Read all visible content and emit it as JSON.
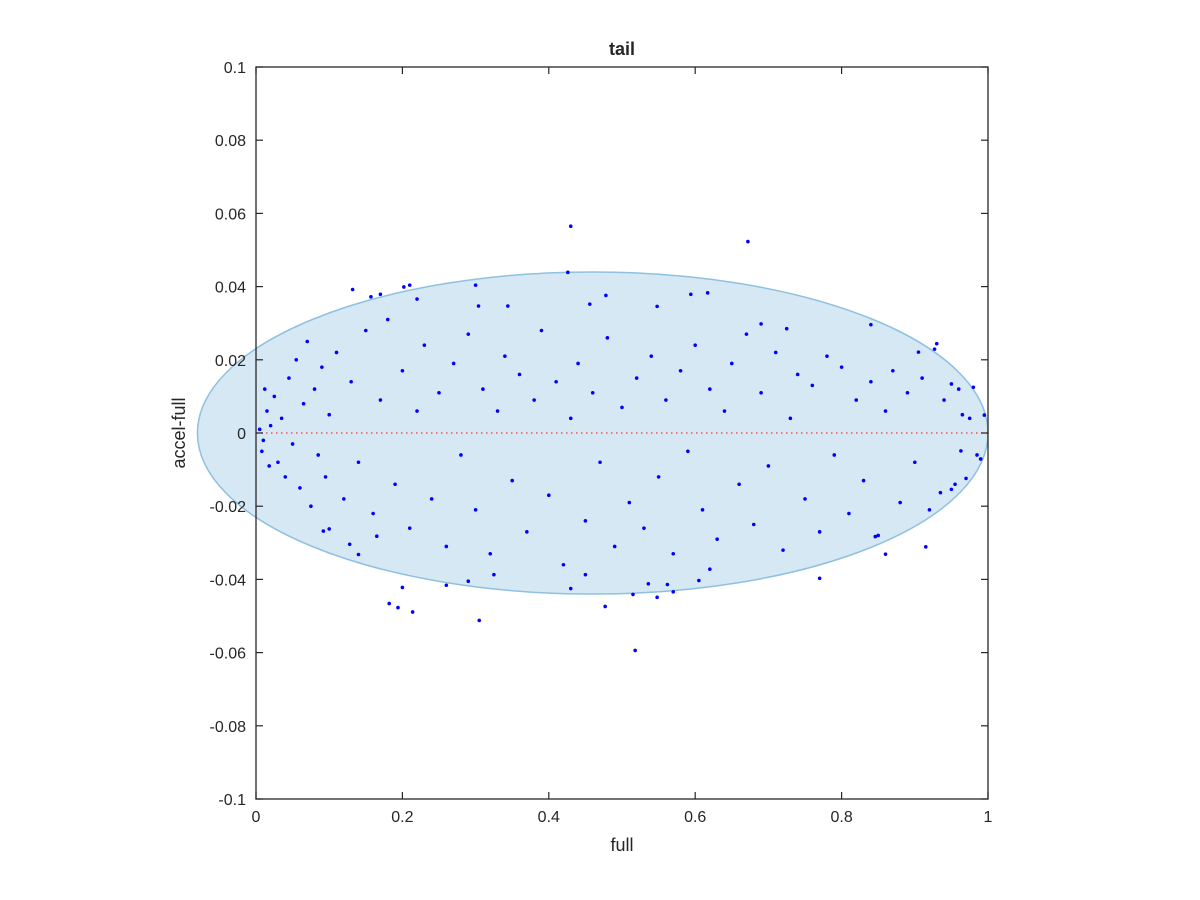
{
  "chart_data": {
    "type": "scatter",
    "title": "tail",
    "xlabel": "full",
    "ylabel": "accel-full",
    "xlim": [
      0,
      1
    ],
    "ylim": [
      -0.1,
      0.1
    ],
    "xticks": [
      0,
      0.2,
      0.4,
      0.6,
      0.8,
      1
    ],
    "xtick_labels": [
      "0",
      "0.2",
      "0.4",
      "0.6",
      "0.8",
      "1"
    ],
    "yticks": [
      -0.1,
      -0.08,
      -0.06,
      -0.04,
      -0.02,
      0,
      0.02,
      0.04,
      0.06,
      0.08,
      0.1
    ],
    "ytick_labels": [
      "-0.1",
      "-0.08",
      "-0.06",
      "-0.04",
      "-0.02",
      "0",
      "0.02",
      "0.04",
      "0.06",
      "0.08",
      "0.1"
    ],
    "grid": false,
    "reference_line": {
      "y": 0,
      "style": "dotted",
      "color": "#ff4d4d"
    },
    "ellipse": {
      "center_x": 0.46,
      "center_y": 0,
      "semi_axis_x": 0.54,
      "semi_axis_y": 0.044,
      "fill_color": "#d6e8f4",
      "stroke_color": "#8fc1de"
    },
    "point_color": "#0000ff",
    "series": [
      {
        "values": [
          [
            0.43,
            0.0565
          ],
          [
            0.672,
            0.0523
          ],
          [
            0.426,
            0.0439
          ],
          [
            0.3,
            0.0404
          ],
          [
            0.21,
            0.0404
          ],
          [
            0.202,
            0.0399
          ],
          [
            0.132,
            0.0392
          ],
          [
            0.22,
            0.0366
          ],
          [
            0.17,
            0.0379
          ],
          [
            0.157,
            0.0372
          ],
          [
            0.478,
            0.0376
          ],
          [
            0.456,
            0.0352
          ],
          [
            0.548,
            0.0346
          ],
          [
            0.617,
            0.0383
          ],
          [
            0.594,
            0.0379
          ],
          [
            0.304,
            0.0347
          ],
          [
            0.344,
            0.0347
          ],
          [
            0.84,
            0.0296
          ],
          [
            0.69,
            0.0298
          ],
          [
            0.725,
            0.0285
          ],
          [
            0.93,
            0.0244
          ],
          [
            0.927,
            0.0229
          ],
          [
            0.905,
            0.0221
          ],
          [
            0.98,
            0.0125
          ],
          [
            0.95,
            0.0134
          ],
          [
            0.965,
            0.005
          ],
          [
            0.995,
            0.0049
          ],
          [
            0.99,
            -0.0071
          ],
          [
            0.97,
            -0.0124
          ],
          [
            0.963,
            -0.0049
          ],
          [
            0.95,
            -0.0154
          ],
          [
            0.935,
            -0.0163
          ],
          [
            0.915,
            -0.0311
          ],
          [
            0.86,
            -0.0331
          ],
          [
            0.846,
            -0.0283
          ],
          [
            0.77,
            -0.0397
          ],
          [
            0.62,
            -0.0372
          ],
          [
            0.57,
            -0.0434
          ],
          [
            0.562,
            -0.0414
          ],
          [
            0.548,
            -0.0449
          ],
          [
            0.536,
            -0.0412
          ],
          [
            0.515,
            -0.0441
          ],
          [
            0.477,
            -0.0474
          ],
          [
            0.518,
            -0.0594
          ],
          [
            0.305,
            -0.0512
          ],
          [
            0.214,
            -0.0489
          ],
          [
            0.2,
            -0.0422
          ],
          [
            0.194,
            -0.0477
          ],
          [
            0.182,
            -0.0466
          ],
          [
            0.165,
            -0.0282
          ],
          [
            0.14,
            -0.0332
          ],
          [
            0.128,
            -0.0304
          ],
          [
            0.1,
            -0.0262
          ],
          [
            0.092,
            -0.0268
          ],
          [
            0.26,
            -0.0416
          ],
          [
            0.29,
            -0.0405
          ],
          [
            0.325,
            -0.0387
          ],
          [
            0.43,
            -0.0425
          ],
          [
            0.45,
            -0.0387
          ],
          [
            0.605,
            -0.0403
          ],
          [
            0.02,
            0.002
          ],
          [
            0.01,
            -0.002
          ],
          [
            0.015,
            0.006
          ],
          [
            0.005,
            0.001
          ],
          [
            0.008,
            -0.005
          ],
          [
            0.025,
            0.01
          ],
          [
            0.03,
            -0.008
          ],
          [
            0.012,
            0.012
          ],
          [
            0.035,
            0.004
          ],
          [
            0.04,
            -0.012
          ],
          [
            0.018,
            -0.009
          ],
          [
            0.045,
            0.015
          ],
          [
            0.05,
            -0.003
          ],
          [
            0.055,
            0.02
          ],
          [
            0.06,
            -0.015
          ],
          [
            0.065,
            0.008
          ],
          [
            0.07,
            0.025
          ],
          [
            0.075,
            -0.02
          ],
          [
            0.08,
            0.012
          ],
          [
            0.085,
            -0.006
          ],
          [
            0.09,
            0.018
          ],
          [
            0.095,
            -0.012
          ],
          [
            0.1,
            0.005
          ],
          [
            0.11,
            0.022
          ],
          [
            0.12,
            -0.018
          ],
          [
            0.13,
            0.014
          ],
          [
            0.14,
            -0.008
          ],
          [
            0.15,
            0.028
          ],
          [
            0.16,
            -0.022
          ],
          [
            0.17,
            0.009
          ],
          [
            0.18,
            0.031
          ],
          [
            0.19,
            -0.014
          ],
          [
            0.2,
            0.017
          ],
          [
            0.21,
            -0.026
          ],
          [
            0.22,
            0.006
          ],
          [
            0.23,
            0.024
          ],
          [
            0.24,
            -0.018
          ],
          [
            0.25,
            0.011
          ],
          [
            0.26,
            -0.031
          ],
          [
            0.27,
            0.019
          ],
          [
            0.28,
            -0.006
          ],
          [
            0.29,
            0.027
          ],
          [
            0.3,
            -0.021
          ],
          [
            0.31,
            0.012
          ],
          [
            0.32,
            -0.033
          ],
          [
            0.33,
            0.006
          ],
          [
            0.34,
            0.021
          ],
          [
            0.35,
            -0.013
          ],
          [
            0.36,
            0.016
          ],
          [
            0.37,
            -0.027
          ],
          [
            0.38,
            0.009
          ],
          [
            0.39,
            0.028
          ],
          [
            0.4,
            -0.017
          ],
          [
            0.41,
            0.014
          ],
          [
            0.42,
            -0.036
          ],
          [
            0.43,
            0.004
          ],
          [
            0.44,
            0.019
          ],
          [
            0.45,
            -0.024
          ],
          [
            0.46,
            0.011
          ],
          [
            0.47,
            -0.008
          ],
          [
            0.48,
            0.026
          ],
          [
            0.49,
            -0.031
          ],
          [
            0.5,
            0.007
          ],
          [
            0.51,
            -0.019
          ],
          [
            0.52,
            0.015
          ],
          [
            0.53,
            -0.026
          ],
          [
            0.54,
            0.021
          ],
          [
            0.55,
            -0.012
          ],
          [
            0.56,
            0.009
          ],
          [
            0.57,
            -0.033
          ],
          [
            0.58,
            0.017
          ],
          [
            0.59,
            -0.005
          ],
          [
            0.6,
            0.024
          ],
          [
            0.61,
            -0.021
          ],
          [
            0.62,
            0.012
          ],
          [
            0.63,
            -0.029
          ],
          [
            0.64,
            0.006
          ],
          [
            0.65,
            0.019
          ],
          [
            0.66,
            -0.014
          ],
          [
            0.67,
            0.027
          ],
          [
            0.68,
            -0.025
          ],
          [
            0.69,
            0.011
          ],
          [
            0.7,
            -0.009
          ],
          [
            0.71,
            0.022
          ],
          [
            0.72,
            -0.032
          ],
          [
            0.73,
            0.004
          ],
          [
            0.74,
            0.016
          ],
          [
            0.75,
            -0.018
          ],
          [
            0.76,
            0.013
          ],
          [
            0.77,
            -0.027
          ],
          [
            0.78,
            0.021
          ],
          [
            0.79,
            -0.006
          ],
          [
            0.8,
            0.018
          ],
          [
            0.81,
            -0.022
          ],
          [
            0.82,
            0.009
          ],
          [
            0.83,
            -0.013
          ],
          [
            0.84,
            0.014
          ],
          [
            0.85,
            -0.028
          ],
          [
            0.86,
            0.006
          ],
          [
            0.87,
            0.017
          ],
          [
            0.88,
            -0.019
          ],
          [
            0.89,
            0.011
          ],
          [
            0.9,
            -0.008
          ],
          [
            0.91,
            0.015
          ],
          [
            0.92,
            -0.021
          ],
          [
            0.94,
            0.009
          ],
          [
            0.955,
            -0.014
          ],
          [
            0.975,
            0.004
          ],
          [
            0.985,
            -0.006
          ],
          [
            0.96,
            0.012
          ]
        ]
      }
    ]
  }
}
